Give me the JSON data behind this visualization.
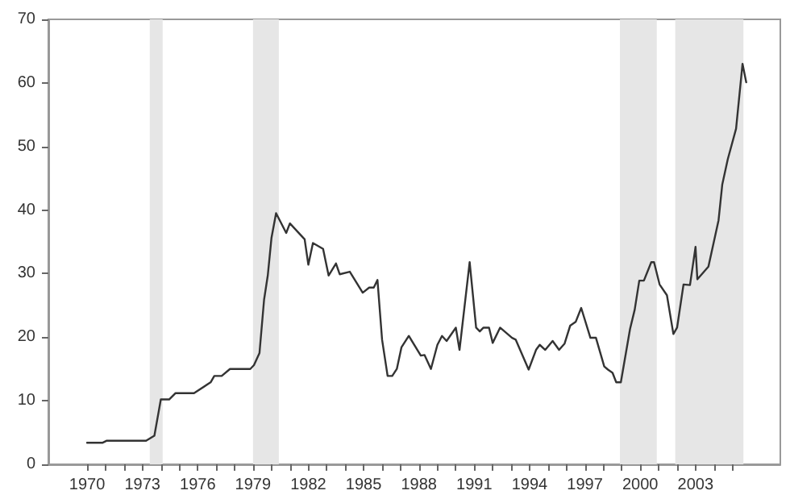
{
  "chart_data": {
    "type": "line",
    "x": [
      1970.0,
      1970.85,
      1971.05,
      1973.2,
      1973.65,
      1974.0,
      1974.45,
      1974.8,
      1975.8,
      1976.7,
      1976.9,
      1977.3,
      1977.75,
      1978.85,
      1979.05,
      1979.35,
      1979.6,
      1979.8,
      1980.0,
      1980.25,
      1980.8,
      1981.0,
      1981.8,
      1982.0,
      1982.25,
      1982.8,
      1983.1,
      1983.5,
      1983.7,
      1984.25,
      1984.95,
      1985.3,
      1985.55,
      1985.75,
      1986.0,
      1986.3,
      1986.55,
      1986.8,
      1987.05,
      1987.45,
      1988.1,
      1988.3,
      1988.65,
      1989.0,
      1989.25,
      1989.5,
      1990.0,
      1990.2,
      1990.75,
      1991.1,
      1991.3,
      1991.5,
      1991.8,
      1992.0,
      1992.4,
      1993.05,
      1993.25,
      1993.95,
      1994.35,
      1994.55,
      1994.85,
      1995.25,
      1995.6,
      1995.9,
      1996.2,
      1996.5,
      1996.8,
      1997.3,
      1997.6,
      1998.05,
      1998.25,
      1998.5,
      1998.7,
      1998.95,
      1999.45,
      1999.7,
      1999.95,
      2000.2,
      2000.6,
      2000.75,
      2001.05,
      2001.45,
      2001.8,
      2002.0,
      2002.35,
      2002.7,
      2003.0,
      2003.1,
      2003.7,
      2004.25,
      2004.45,
      2004.75,
      2005.2,
      2005.55,
      2005.75
    ],
    "series": [
      {
        "color": "#333333",
        "values": [
          3.4,
          3.4,
          3.7,
          3.7,
          4.5,
          10.2,
          10.2,
          11.2,
          11.2,
          12.9,
          13.9,
          13.9,
          15.0,
          15.0,
          15.6,
          17.5,
          25.9,
          29.7,
          35.6,
          39.5,
          36.4,
          37.9,
          35.4,
          31.4,
          34.8,
          33.9,
          29.7,
          31.6,
          29.9,
          30.3,
          27.0,
          27.8,
          27.8,
          29.0,
          19.6,
          13.9,
          13.9,
          15.0,
          18.4,
          20.2,
          17.1,
          17.2,
          15.0,
          18.8,
          20.2,
          19.4,
          21.5,
          18.0,
          31.8,
          21.5,
          20.9,
          21.5,
          21.5,
          19.1,
          21.5,
          19.9,
          19.6,
          14.9,
          18.0,
          18.8,
          18.0,
          19.4,
          18.0,
          19.0,
          21.8,
          22.4,
          24.6,
          19.9,
          19.9,
          15.4,
          14.9,
          14.4,
          12.9,
          12.9,
          21.3,
          24.3,
          28.9,
          28.9,
          31.8,
          31.8,
          28.3,
          26.6,
          20.5,
          21.5,
          28.3,
          28.2,
          34.2,
          29.1,
          31.1,
          38.4,
          44.0,
          48.0,
          52.8,
          63.0,
          60.1
        ]
      }
    ],
    "xlim": [
      1967.9,
      2007.6
    ],
    "xticks": [
      1970,
      {
        "value": 1971,
        "label": null
      },
      {
        "value": 1972,
        "label": null
      },
      1973,
      {
        "value": 1974,
        "label": null
      },
      {
        "value": 1975,
        "label": null
      },
      1976,
      {
        "value": 1977,
        "label": null
      },
      {
        "value": 1978,
        "label": null
      },
      1979,
      {
        "value": 1980,
        "label": null
      },
      {
        "value": 1981,
        "label": null
      },
      1982,
      {
        "value": 1983,
        "label": null
      },
      {
        "value": 1984,
        "label": null
      },
      1985,
      {
        "value": 1986,
        "label": null
      },
      {
        "value": 1987,
        "label": null
      },
      1988,
      {
        "value": 1989,
        "label": null
      },
      {
        "value": 1990,
        "label": null
      },
      1991,
      {
        "value": 1992,
        "label": null
      },
      {
        "value": 1993,
        "label": null
      },
      1994,
      {
        "value": 1995,
        "label": null
      },
      {
        "value": 1996,
        "label": null
      },
      1997,
      {
        "value": 1998,
        "label": null
      },
      {
        "value": 1999,
        "label": null
      },
      2000,
      {
        "value": 2001,
        "label": null
      },
      {
        "value": 2002,
        "label": null
      },
      2003,
      {
        "value": 2004,
        "label": null
      },
      {
        "value": 2005,
        "label": null
      }
    ],
    "ylim": [
      0,
      70
    ],
    "yticks": [
      0,
      10,
      20,
      30,
      40,
      50,
      60,
      70
    ],
    "bands": [
      {
        "axis": "x",
        "from": 1973.4,
        "to": 1974.1,
        "color": "#e6e6e6"
      },
      {
        "axis": "x",
        "from": 1979.0,
        "to": 1980.4,
        "color": "#e6e6e6"
      },
      {
        "axis": "x",
        "from": 1998.9,
        "to": 2000.9,
        "color": "#e6e6e6"
      },
      {
        "axis": "x",
        "from": 2001.9,
        "to": 2005.6,
        "color": "#e6e6e6"
      }
    ],
    "grid": false,
    "marker": "none",
    "line_style": "solid"
  }
}
